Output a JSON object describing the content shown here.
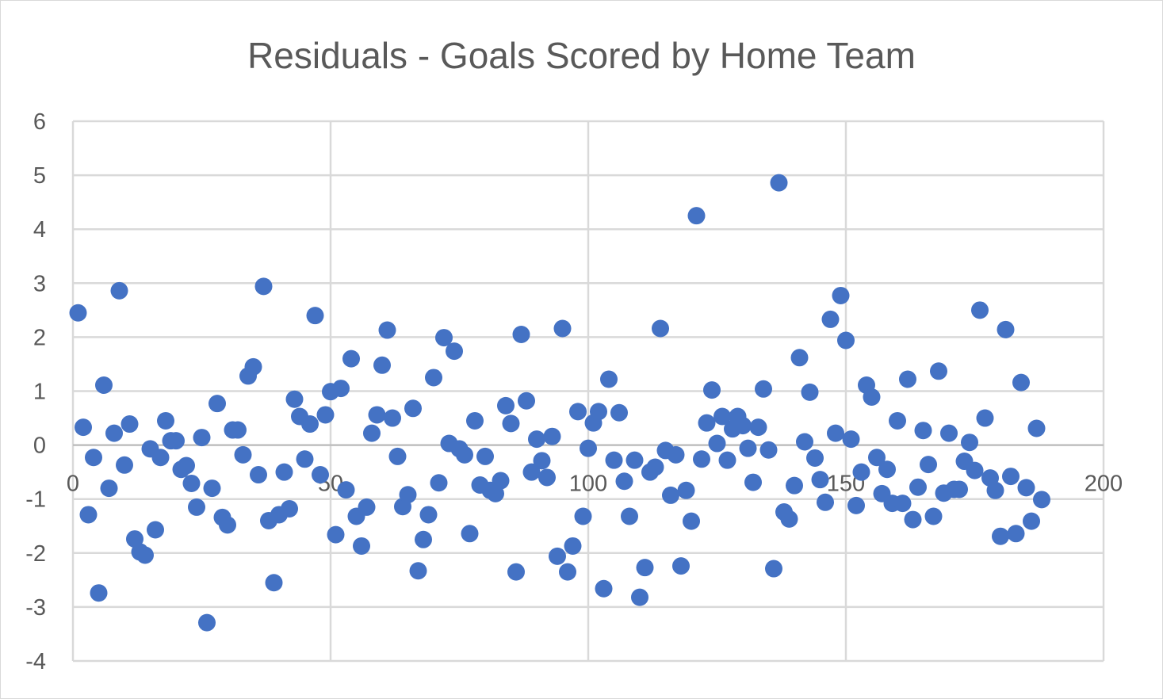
{
  "chart_data": {
    "type": "scatter",
    "title": "Residuals - Goals Scored by Home Team",
    "xlabel": "",
    "ylabel": "",
    "xlim": [
      0,
      200
    ],
    "ylim": [
      -4,
      6
    ],
    "x_ticks": [
      0,
      50,
      100,
      150,
      200
    ],
    "y_ticks": [
      -4,
      -3,
      -2,
      -1,
      0,
      1,
      2,
      3,
      4,
      5,
      6
    ],
    "x_axis_crosses_at": 0,
    "grid": "on",
    "legend": "none",
    "marker_color": "#4472C4",
    "points": [
      [
        1,
        2.45
      ],
      [
        2,
        0.33
      ],
      [
        3,
        -1.29
      ],
      [
        4,
        -0.23
      ],
      [
        5,
        -2.74
      ],
      [
        6,
        1.11
      ],
      [
        7,
        -0.8
      ],
      [
        8,
        0.22
      ],
      [
        9,
        2.86
      ],
      [
        10,
        -0.37
      ],
      [
        11,
        0.39
      ],
      [
        12,
        -1.74
      ],
      [
        13,
        -1.98
      ],
      [
        14,
        -2.04
      ],
      [
        15,
        -0.07
      ],
      [
        16,
        -1.57
      ],
      [
        17,
        -0.23
      ],
      [
        18,
        0.45
      ],
      [
        19,
        0.08
      ],
      [
        20,
        0.08
      ],
      [
        21,
        -0.45
      ],
      [
        22,
        -0.38
      ],
      [
        23,
        -0.71
      ],
      [
        24,
        -1.15
      ],
      [
        25,
        0.14
      ],
      [
        26,
        -3.29
      ],
      [
        27,
        -0.8
      ],
      [
        28,
        0.77
      ],
      [
        29,
        -1.34
      ],
      [
        30,
        -1.48
      ],
      [
        31,
        0.28
      ],
      [
        32,
        0.28
      ],
      [
        33,
        -0.18
      ],
      [
        34,
        1.28
      ],
      [
        35,
        1.45
      ],
      [
        36,
        -0.55
      ],
      [
        37,
        2.94
      ],
      [
        38,
        -1.4
      ],
      [
        39,
        -2.55
      ],
      [
        40,
        -1.29
      ],
      [
        41,
        -0.5
      ],
      [
        42,
        -1.18
      ],
      [
        43,
        0.85
      ],
      [
        44,
        0.53
      ],
      [
        45,
        -0.26
      ],
      [
        46,
        0.39
      ],
      [
        47,
        2.4
      ],
      [
        48,
        -0.55
      ],
      [
        49,
        0.56
      ],
      [
        50,
        0.99
      ],
      [
        51,
        -1.66
      ],
      [
        52,
        1.05
      ],
      [
        53,
        -0.83
      ],
      [
        54,
        1.6
      ],
      [
        55,
        -1.32
      ],
      [
        56,
        -1.87
      ],
      [
        57,
        -1.15
      ],
      [
        58,
        0.22
      ],
      [
        59,
        0.56
      ],
      [
        60,
        1.48
      ],
      [
        61,
        2.13
      ],
      [
        62,
        0.5
      ],
      [
        63,
        -0.21
      ],
      [
        64,
        -1.14
      ],
      [
        65,
        -0.92
      ],
      [
        66,
        0.68
      ],
      [
        67,
        -2.33
      ],
      [
        68,
        -1.75
      ],
      [
        69,
        -1.29
      ],
      [
        70,
        1.25
      ],
      [
        71,
        -0.7
      ],
      [
        72,
        1.99
      ],
      [
        73,
        0.03
      ],
      [
        74,
        1.74
      ],
      [
        75,
        -0.07
      ],
      [
        76,
        -0.18
      ],
      [
        77,
        -1.64
      ],
      [
        78,
        0.45
      ],
      [
        79,
        -0.74
      ],
      [
        80,
        -0.21
      ],
      [
        81,
        -0.84
      ],
      [
        82,
        -0.9
      ],
      [
        83,
        -0.66
      ],
      [
        84,
        0.73
      ],
      [
        85,
        0.4
      ],
      [
        86,
        -2.35
      ],
      [
        87,
        2.05
      ],
      [
        88,
        0.82
      ],
      [
        89,
        -0.5
      ],
      [
        90,
        0.11
      ],
      [
        91,
        -0.29
      ],
      [
        92,
        -0.6
      ],
      [
        93,
        0.16
      ],
      [
        94,
        -2.06
      ],
      [
        95,
        2.16
      ],
      [
        96,
        -2.35
      ],
      [
        97,
        -1.87
      ],
      [
        98,
        0.62
      ],
      [
        99,
        -1.32
      ],
      [
        100,
        -0.06
      ],
      [
        101,
        0.41
      ],
      [
        102,
        0.62
      ],
      [
        103,
        -2.66
      ],
      [
        104,
        1.22
      ],
      [
        105,
        -0.28
      ],
      [
        106,
        0.6
      ],
      [
        107,
        -0.67
      ],
      [
        108,
        -1.32
      ],
      [
        109,
        -0.28
      ],
      [
        110,
        -2.82
      ],
      [
        111,
        -2.27
      ],
      [
        112,
        -0.5
      ],
      [
        113,
        -0.41
      ],
      [
        114,
        2.16
      ],
      [
        115,
        -0.1
      ],
      [
        116,
        -0.93
      ],
      [
        117,
        -0.18
      ],
      [
        118,
        -2.24
      ],
      [
        119,
        -0.84
      ],
      [
        120,
        -1.41
      ],
      [
        121,
        4.25
      ],
      [
        122,
        -0.26
      ],
      [
        123,
        0.41
      ],
      [
        124,
        1.02
      ],
      [
        125,
        0.03
      ],
      [
        126,
        0.53
      ],
      [
        127,
        -0.28
      ],
      [
        128,
        0.3
      ],
      [
        129,
        0.53
      ],
      [
        130,
        0.36
      ],
      [
        131,
        -0.06
      ],
      [
        132,
        -0.69
      ],
      [
        133,
        0.33
      ],
      [
        134,
        1.04
      ],
      [
        135,
        -0.09
      ],
      [
        136,
        -2.29
      ],
      [
        137,
        4.86
      ],
      [
        138,
        -1.24
      ],
      [
        139,
        -1.37
      ],
      [
        140,
        -0.75
      ],
      [
        141,
        1.62
      ],
      [
        142,
        0.06
      ],
      [
        143,
        0.98
      ],
      [
        144,
        -0.24
      ],
      [
        145,
        -0.64
      ],
      [
        146,
        -1.06
      ],
      [
        147,
        2.33
      ],
      [
        148,
        0.22
      ],
      [
        149,
        2.77
      ],
      [
        150,
        1.94
      ],
      [
        151,
        0.11
      ],
      [
        152,
        -1.12
      ],
      [
        153,
        -0.5
      ],
      [
        154,
        1.11
      ],
      [
        155,
        0.89
      ],
      [
        156,
        -0.23
      ],
      [
        157,
        -0.9
      ],
      [
        158,
        -0.45
      ],
      [
        159,
        -1.08
      ],
      [
        160,
        0.45
      ],
      [
        161,
        -1.08
      ],
      [
        162,
        1.22
      ],
      [
        163,
        -1.38
      ],
      [
        164,
        -0.78
      ],
      [
        165,
        0.27
      ],
      [
        166,
        -0.36
      ],
      [
        167,
        -1.32
      ],
      [
        168,
        1.37
      ],
      [
        169,
        -0.89
      ],
      [
        170,
        0.22
      ],
      [
        171,
        -0.82
      ],
      [
        172,
        -0.82
      ],
      [
        173,
        -0.3
      ],
      [
        174,
        0.05
      ],
      [
        175,
        -0.47
      ],
      [
        176,
        2.5
      ],
      [
        177,
        0.5
      ],
      [
        178,
        -0.61
      ],
      [
        179,
        -0.84
      ],
      [
        180,
        -1.69
      ],
      [
        181,
        2.14
      ],
      [
        182,
        -0.58
      ],
      [
        183,
        -1.64
      ],
      [
        184,
        1.16
      ],
      [
        185,
        -0.79
      ],
      [
        186,
        -1.41
      ],
      [
        187,
        0.31
      ],
      [
        188,
        -1.01
      ]
    ]
  }
}
